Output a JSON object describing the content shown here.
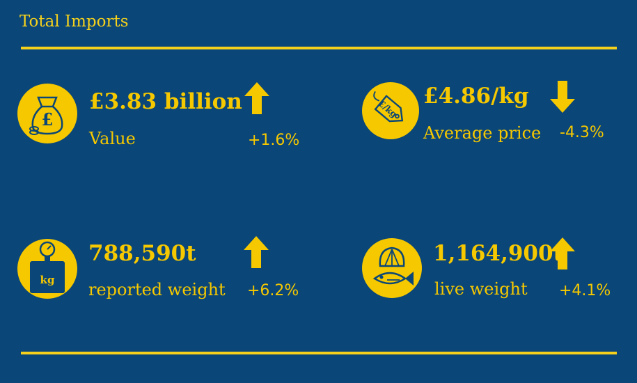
{
  "title": "Total Imports",
  "colors": {
    "background": "#0a4677",
    "accent": "#f6c800",
    "rule": "#f6d11c"
  },
  "metrics": [
    {
      "icon": "money-bag-icon",
      "value": "£3.83 billion",
      "label": "Value",
      "change": "+1.6%",
      "direction": "up"
    },
    {
      "icon": "price-tag-icon",
      "value": "£4.86/kg",
      "label": "Average price",
      "change": "-4.3%",
      "direction": "down",
      "icon_text": "£/kg"
    },
    {
      "icon": "weighing-scale-icon",
      "value": "788,590t",
      "label": "reported weight",
      "change": "+6.2%",
      "direction": "up",
      "icon_text": "kg"
    },
    {
      "icon": "fish-shell-icon",
      "value": "1,164,900t",
      "label": "live weight",
      "change": "+4.1%",
      "direction": "up"
    }
  ]
}
